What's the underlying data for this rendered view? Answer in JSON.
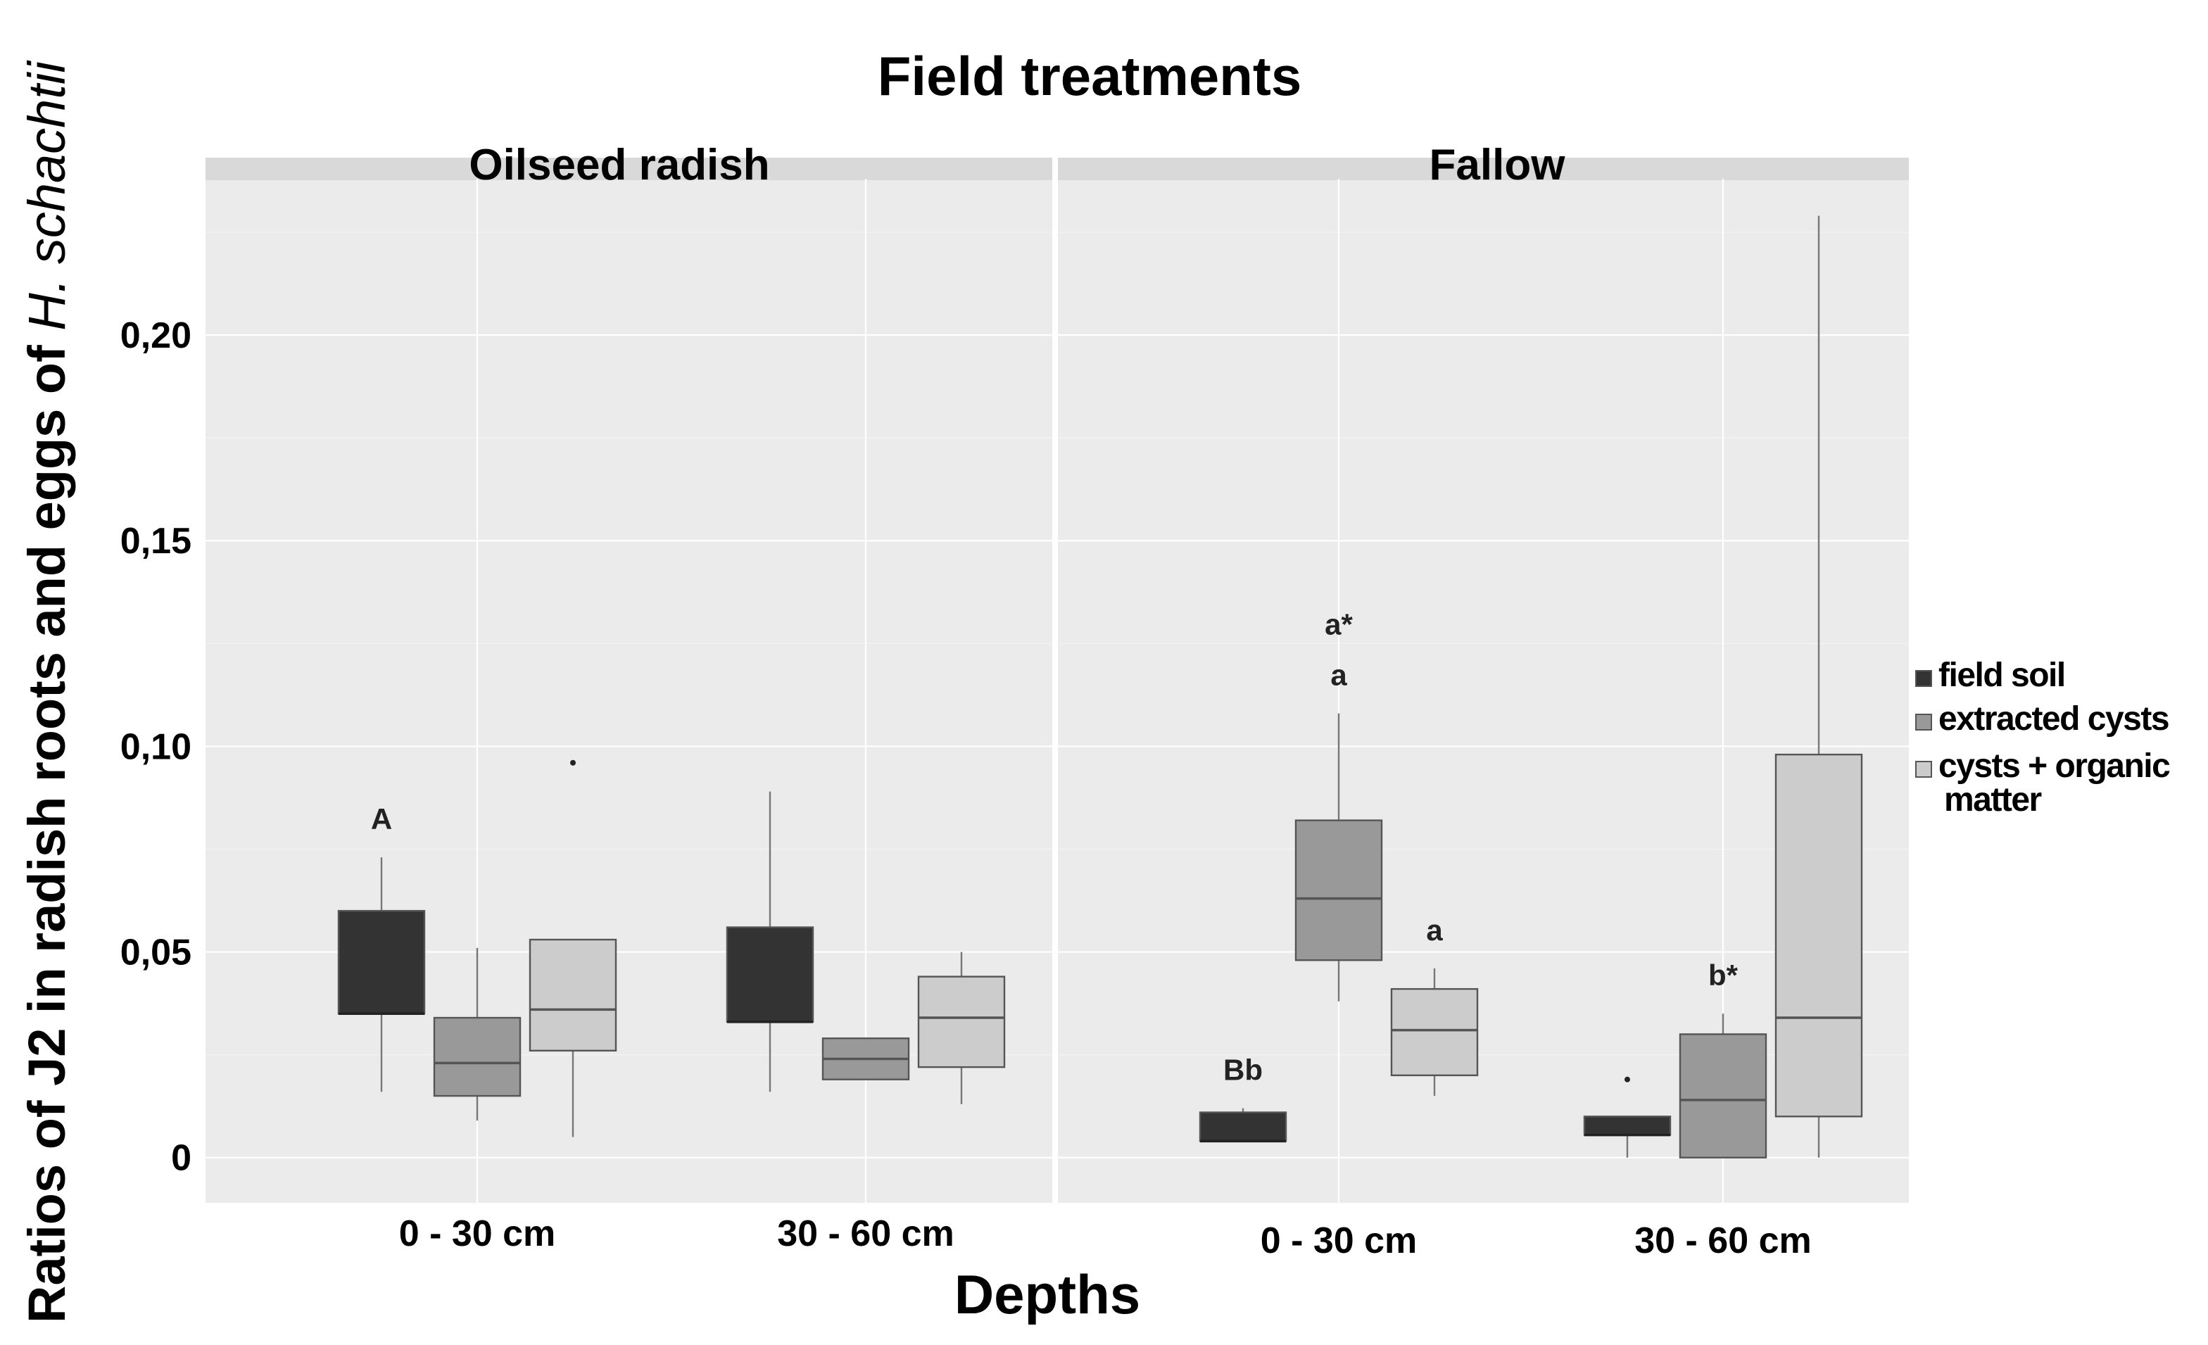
{
  "chart_data": {
    "type": "boxplot",
    "title": "Field treatments",
    "xlabel": "Depths",
    "ylabel_roman": "Ratios of J2 in radish roots and eggs of ",
    "ylabel_italic": "H. schachtii",
    "ylim": [
      -0.011,
      0.238
    ],
    "yticks": [
      {
        "value": 0,
        "label": "0"
      },
      {
        "value": 0.05,
        "label": "0,05"
      },
      {
        "value": 0.1,
        "label": "0,10"
      },
      {
        "value": 0.15,
        "label": "0,15"
      },
      {
        "value": 0.2,
        "label": "0,20"
      }
    ],
    "facets": [
      "Oilseed radish",
      "Fallow"
    ],
    "categories": [
      "0 - 30 cm",
      "30 - 60 cm"
    ],
    "legend": [
      {
        "name": "field soil",
        "color": "#333333"
      },
      {
        "name": "extracted cysts",
        "color": "#999999"
      },
      {
        "name": "cysts + organic matter",
        "color": "#cccccc"
      }
    ],
    "legend_text": [
      [
        "field soil"
      ],
      [
        "extracted cysts"
      ],
      [
        "cysts + organic",
        "matter"
      ]
    ],
    "series": [
      {
        "name": "field soil",
        "panels": [
          [
            {
              "min": 0.016,
              "q1": 0.035,
              "median": 0.035,
              "q3": 0.06,
              "max": 0.073,
              "outliers": [],
              "label": "A"
            },
            {
              "min": 0.016,
              "q1": 0.033,
              "median": 0.033,
              "q3": 0.056,
              "max": 0.089,
              "outliers": [],
              "label": ""
            }
          ],
          [
            {
              "min": 0.004,
              "q1": 0.004,
              "median": 0.004,
              "q3": 0.011,
              "max": 0.012,
              "outliers": [],
              "label": "Bb"
            },
            {
              "min": 0.0,
              "q1": 0.0055,
              "median": 0.0055,
              "q3": 0.01,
              "max": 0.01,
              "outliers": [
                0.019
              ],
              "label": ""
            }
          ]
        ]
      },
      {
        "name": "extracted cysts",
        "panels": [
          [
            {
              "min": 0.009,
              "q1": 0.015,
              "median": 0.023,
              "q3": 0.034,
              "max": 0.051,
              "outliers": [],
              "label": ""
            },
            {
              "min": 0.019,
              "q1": 0.019,
              "median": 0.024,
              "q3": 0.029,
              "max": 0.029,
              "outliers": [],
              "label": ""
            }
          ],
          [
            {
              "min": 0.038,
              "q1": 0.048,
              "median": 0.063,
              "q3": 0.082,
              "max": 0.108,
              "outliers": [],
              "label": "a",
              "label2": "a*"
            },
            {
              "min": 0.0,
              "q1": 0.0,
              "median": 0.014,
              "q3": 0.03,
              "max": 0.035,
              "outliers": [],
              "label": "b*"
            }
          ]
        ]
      },
      {
        "name": "cysts + organic matter",
        "panels": [
          [
            {
              "min": 0.005,
              "q1": 0.026,
              "median": 0.036,
              "q3": 0.053,
              "max": 0.053,
              "outliers": [
                0.096
              ],
              "label": ""
            },
            {
              "min": 0.013,
              "q1": 0.022,
              "median": 0.034,
              "q3": 0.044,
              "max": 0.05,
              "outliers": [],
              "label": ""
            }
          ],
          [
            {
              "min": 0.015,
              "q1": 0.02,
              "median": 0.031,
              "q3": 0.041,
              "max": 0.046,
              "outliers": [],
              "label": "a"
            },
            {
              "min": 0.0,
              "q1": 0.01,
              "median": 0.034,
              "q3": 0.098,
              "max": 0.229,
              "outliers": [],
              "label": ""
            }
          ]
        ]
      }
    ]
  }
}
